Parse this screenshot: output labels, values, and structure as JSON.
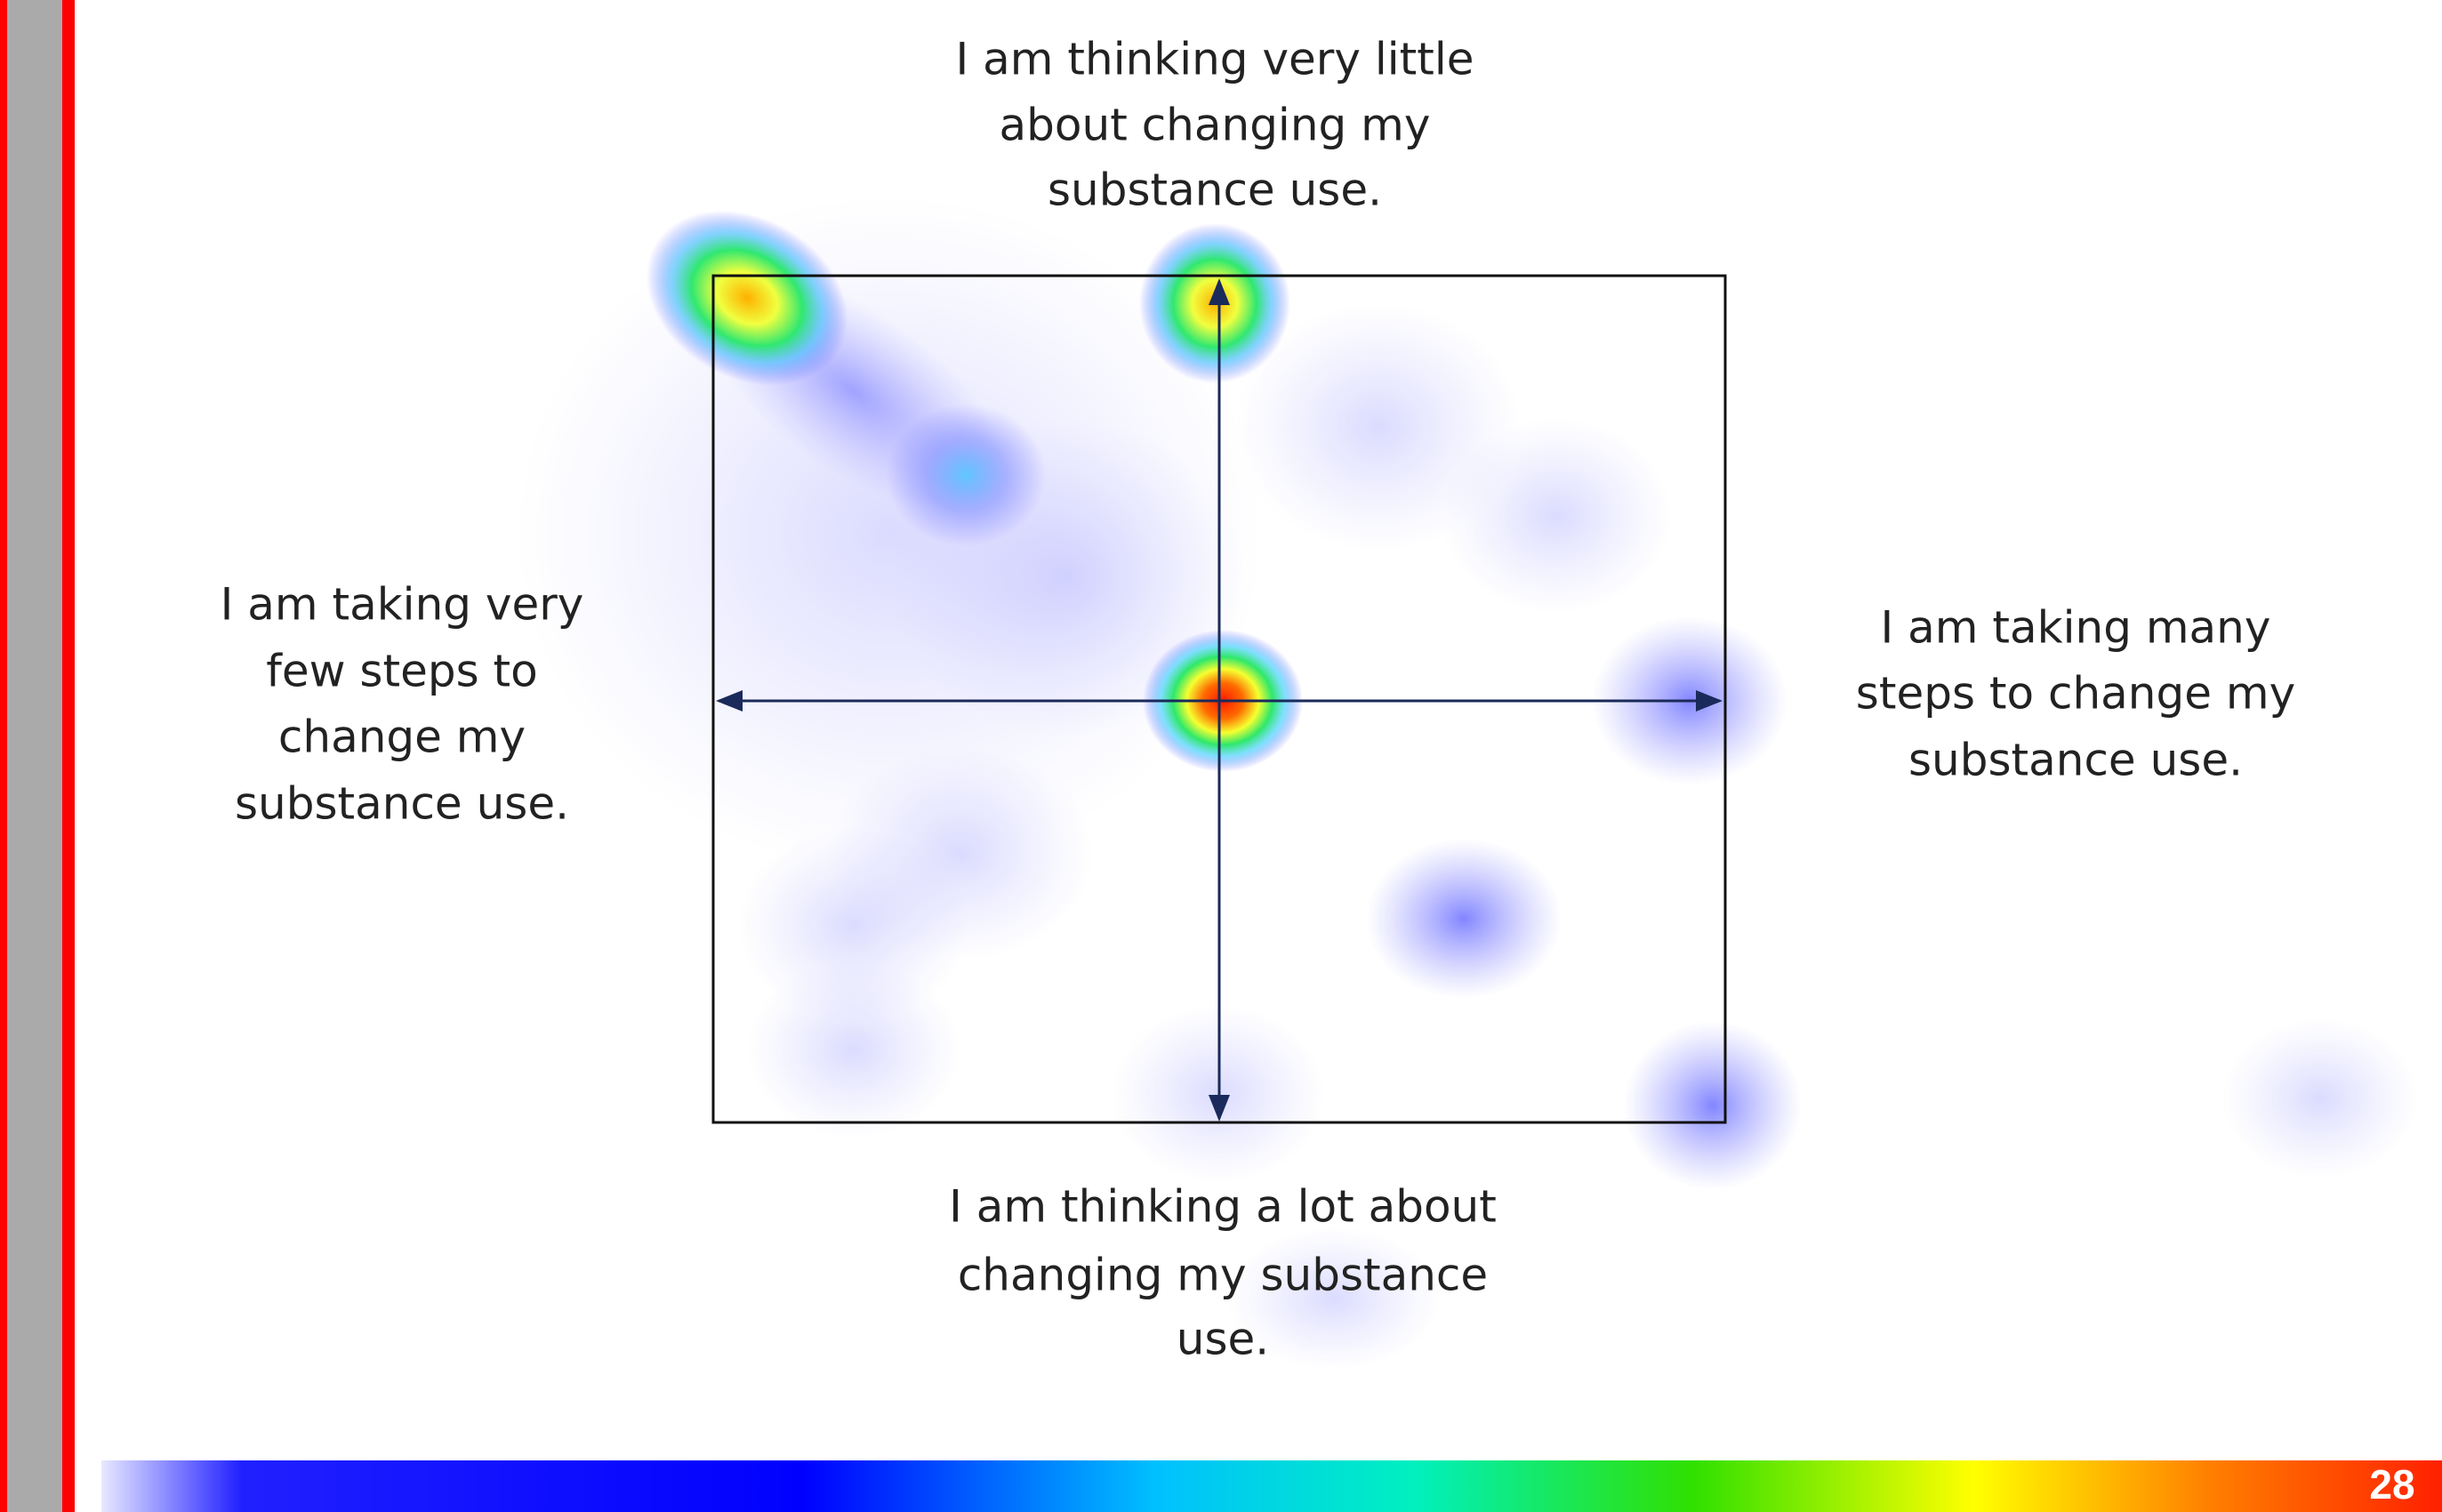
{
  "labels": {
    "top": [
      "I am thinking very little",
      "about changing my",
      "substance use."
    ],
    "left": [
      "I am taking very",
      "few steps to",
      "change my",
      "substance use."
    ],
    "right": [
      "I am taking many",
      "steps to change my",
      "substance use."
    ],
    "bottom": [
      "I am thinking a lot about",
      "changing my substance",
      "use."
    ]
  },
  "page_number": "28"
}
